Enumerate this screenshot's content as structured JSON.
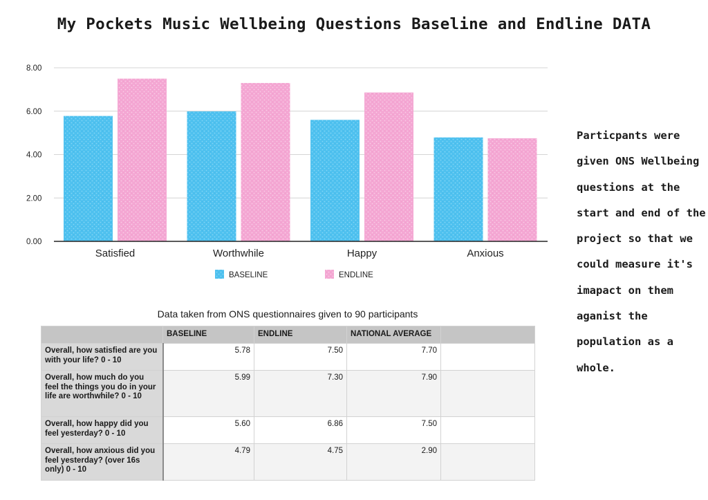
{
  "title": "My Pockets Music Wellbeing Questions Baseline and Endline DATA",
  "side_note": "Particpants were given ONS Wellbeing questions at the start and end of the project so that we could measure it's imapact on them aganist the population as a whole.",
  "colors": {
    "baseline": "#4fc1ef",
    "endline": "#f4a7d3",
    "gridline": "#d4d4d4",
    "axis": "#222222",
    "table_header_bg": "#c5c5c5",
    "row_header_bg": "#d9d9d9"
  },
  "chart_data": {
    "type": "bar",
    "title": "",
    "xlabel": "",
    "ylabel": "",
    "categories": [
      "Satisfied",
      "Worthwhile",
      "Happy",
      "Anxious"
    ],
    "series": [
      {
        "name": "BASELINE",
        "values": [
          5.78,
          5.99,
          5.6,
          4.79
        ],
        "color": "#4fc1ef"
      },
      {
        "name": "ENDLINE",
        "values": [
          7.5,
          7.3,
          6.86,
          4.75
        ],
        "color": "#f4a7d3"
      }
    ],
    "ylim": [
      0,
      8
    ],
    "yticks": [
      "0.00",
      "2.00",
      "4.00",
      "6.00",
      "8.00"
    ],
    "ytick_values": [
      0,
      2,
      4,
      6,
      8
    ],
    "grid": true,
    "legend_position": "bottom"
  },
  "table": {
    "caption": "Data taken from ONS questionnaires given to 90 participants",
    "headers": [
      "",
      "BASELINE",
      "ENDLINE",
      "NATIONAL AVERAGE",
      ""
    ],
    "rows": [
      {
        "question": "Overall, how satisfied are you with your life? 0 - 10",
        "baseline": "5.78",
        "endline": "7.50",
        "national": "7.70"
      },
      {
        "question": "Overall, how much do you feel the things you do in your life are worthwhile? 0 - 10",
        "baseline": "5.99",
        "endline": "7.30",
        "national": "7.90"
      },
      {
        "question": "Overall, how happy did you feel yesterday? 0 - 10",
        "baseline": "5.60",
        "endline": "6.86",
        "national": "7.50"
      },
      {
        "question": "Overall, how anxious did you feel yesterday? (over 16s only) 0 - 10",
        "baseline": "4.79",
        "endline": "4.75",
        "national": "2.90"
      }
    ]
  }
}
